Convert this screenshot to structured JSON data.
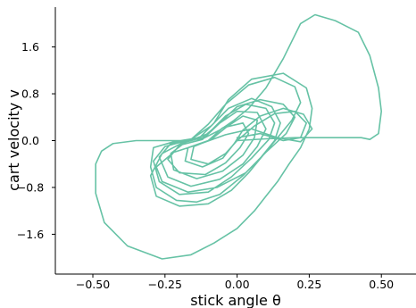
{
  "chart_data": {
    "type": "line",
    "title": "",
    "xlabel": "stick angle θ",
    "ylabel": "cart velocity v",
    "xlim": [
      -0.63,
      0.62
    ],
    "ylim": [
      -2.28,
      2.28
    ],
    "x_ticks": [
      -0.5,
      -0.25,
      0.0,
      0.25,
      0.5
    ],
    "x_tick_labels": [
      "−0.50",
      "−0.25",
      "0.00",
      "0.25",
      "0.50"
    ],
    "y_ticks": [
      -1.6,
      -0.8,
      0.0,
      0.8,
      1.6
    ],
    "y_tick_labels": [
      "−1.6",
      "−0.8",
      "0.0",
      "0.8",
      "1.6"
    ],
    "grid": false,
    "legend": "none",
    "color": "#66c2a5",
    "series": [
      {
        "points": [
          [
            0.0,
            0.0
          ],
          [
            0.1,
            0.03
          ],
          [
            0.2,
            0.05
          ],
          [
            0.33,
            0.05
          ],
          [
            0.43,
            0.05
          ],
          [
            0.46,
            0.02
          ],
          [
            0.49,
            0.12
          ],
          [
            0.5,
            0.5
          ],
          [
            0.49,
            0.9
          ],
          [
            0.46,
            1.45
          ],
          [
            0.42,
            1.85
          ],
          [
            0.34,
            2.05
          ],
          [
            0.27,
            2.15
          ],
          [
            0.22,
            2.0
          ],
          [
            0.16,
            1.4
          ],
          [
            0.1,
            0.9
          ],
          [
            0.04,
            0.55
          ],
          [
            -0.01,
            0.35
          ],
          [
            -0.06,
            0.18
          ],
          [
            -0.12,
            0.03
          ],
          [
            -0.2,
            0.0
          ],
          [
            -0.35,
            0.0
          ],
          [
            -0.43,
            -0.05
          ],
          [
            -0.47,
            -0.18
          ],
          [
            -0.49,
            -0.4
          ],
          [
            -0.49,
            -0.9
          ],
          [
            -0.46,
            -1.4
          ],
          [
            -0.38,
            -1.8
          ],
          [
            -0.26,
            -2.02
          ],
          [
            -0.16,
            -1.95
          ],
          [
            -0.08,
            -1.75
          ],
          [
            0.0,
            -1.5
          ],
          [
            0.06,
            -1.2
          ],
          [
            0.1,
            -0.95
          ],
          [
            0.14,
            -0.7
          ],
          [
            0.18,
            -0.4
          ],
          [
            0.22,
            -0.12
          ],
          [
            0.25,
            0.2
          ],
          [
            0.26,
            0.55
          ],
          [
            0.24,
            0.9
          ],
          [
            0.16,
            1.15
          ],
          [
            0.05,
            1.05
          ],
          [
            -0.03,
            0.7
          ],
          [
            -0.08,
            0.3
          ],
          [
            -0.13,
            0.05
          ],
          [
            -0.22,
            -0.02
          ],
          [
            -0.29,
            -0.12
          ],
          [
            -0.3,
            -0.45
          ],
          [
            -0.28,
            -0.8
          ],
          [
            -0.21,
            -1.02
          ],
          [
            -0.14,
            -1.05
          ],
          [
            -0.06,
            -0.92
          ],
          [
            0.02,
            -0.6
          ],
          [
            0.08,
            -0.3
          ],
          [
            0.13,
            0.0
          ],
          [
            0.15,
            0.3
          ],
          [
            0.12,
            0.58
          ],
          [
            0.05,
            0.72
          ],
          [
            -0.03,
            0.55
          ],
          [
            -0.09,
            0.25
          ],
          [
            -0.16,
            0.02
          ],
          [
            -0.23,
            -0.05
          ],
          [
            -0.27,
            -0.28
          ],
          [
            -0.24,
            -0.62
          ],
          [
            -0.16,
            -0.78
          ],
          [
            -0.06,
            -0.66
          ],
          [
            0.02,
            -0.4
          ],
          [
            0.07,
            -0.1
          ],
          [
            0.1,
            0.2
          ],
          [
            0.07,
            0.48
          ],
          [
            0.0,
            0.5
          ],
          [
            -0.06,
            0.3
          ],
          [
            -0.12,
            0.02
          ],
          [
            -0.2,
            -0.08
          ],
          [
            -0.24,
            -0.32
          ],
          [
            -0.2,
            -0.55
          ],
          [
            -0.11,
            -0.58
          ],
          [
            -0.04,
            -0.38
          ],
          [
            0.01,
            -0.12
          ],
          [
            0.04,
            0.12
          ],
          [
            0.02,
            0.3
          ],
          [
            -0.05,
            0.22
          ],
          [
            -0.1,
            0.0
          ],
          [
            -0.17,
            -0.12
          ],
          [
            -0.18,
            -0.35
          ],
          [
            -0.12,
            -0.45
          ],
          [
            -0.05,
            -0.3
          ],
          [
            -0.01,
            -0.05
          ],
          [
            0.02,
            0.18
          ],
          [
            0.08,
            0.42
          ],
          [
            0.16,
            0.55
          ],
          [
            0.23,
            0.45
          ],
          [
            0.26,
            0.2
          ],
          [
            0.22,
            -0.02
          ],
          [
            0.14,
            0.05
          ],
          [
            0.05,
            0.2
          ],
          [
            -0.04,
            0.1
          ],
          [
            -0.13,
            -0.06
          ],
          [
            -0.22,
            -0.2
          ],
          [
            -0.28,
            -0.45
          ],
          [
            -0.26,
            -0.7
          ],
          [
            -0.17,
            -0.88
          ],
          [
            -0.07,
            -0.8
          ],
          [
            0.03,
            -0.55
          ],
          [
            0.1,
            -0.2
          ],
          [
            0.17,
            0.12
          ],
          [
            0.2,
            0.4
          ],
          [
            0.16,
            0.62
          ],
          [
            0.08,
            0.7
          ],
          [
            0.0,
            0.58
          ],
          [
            -0.06,
            0.3
          ],
          [
            -0.12,
            0.05
          ],
          [
            -0.19,
            -0.04
          ],
          [
            -0.26,
            -0.22
          ],
          [
            -0.3,
            -0.6
          ],
          [
            -0.28,
            -0.95
          ],
          [
            -0.2,
            -1.12
          ],
          [
            -0.1,
            -1.08
          ],
          [
            -0.02,
            -0.85
          ],
          [
            0.04,
            -0.55
          ],
          [
            0.09,
            -0.25
          ],
          [
            0.14,
            0.05
          ],
          [
            0.19,
            0.35
          ],
          [
            0.22,
            0.65
          ],
          [
            0.2,
            0.92
          ],
          [
            0.13,
            1.08
          ],
          [
            0.04,
            0.95
          ],
          [
            -0.04,
            0.62
          ],
          [
            -0.1,
            0.28
          ],
          [
            -0.16,
            0.02
          ],
          [
            -0.25,
            -0.1
          ],
          [
            -0.29,
            -0.35
          ],
          [
            -0.27,
            -0.7
          ],
          [
            -0.2,
            -0.92
          ],
          [
            -0.1,
            -0.88
          ],
          [
            -0.02,
            -0.62
          ],
          [
            0.05,
            -0.3
          ],
          [
            0.11,
            0.02
          ],
          [
            0.13,
            0.3
          ],
          [
            0.1,
            0.55
          ],
          [
            0.03,
            0.62
          ],
          [
            -0.04,
            0.42
          ],
          [
            -0.1,
            0.12
          ],
          [
            -0.18,
            -0.03
          ],
          [
            -0.23,
            -0.22
          ],
          [
            -0.22,
            -0.5
          ],
          [
            -0.14,
            -0.65
          ],
          [
            -0.05,
            -0.52
          ],
          [
            0.02,
            -0.25
          ],
          [
            0.06,
            0.05
          ],
          [
            0.07,
            0.35
          ],
          [
            0.02,
            0.42
          ],
          [
            -0.04,
            0.22
          ],
          [
            -0.09,
            0.02
          ],
          [
            -0.15,
            -0.1
          ],
          [
            -0.16,
            -0.32
          ],
          [
            -0.1,
            -0.4
          ],
          [
            -0.04,
            -0.22
          ],
          [
            0.0,
            0.0
          ],
          [
            0.06,
            0.25
          ],
          [
            0.13,
            0.46
          ],
          [
            0.2,
            0.5
          ],
          [
            0.24,
            0.3
          ],
          [
            0.22,
            0.05
          ],
          [
            0.16,
            0.0
          ],
          [
            0.08,
            0.12
          ],
          [
            0.0,
            0.05
          ]
        ]
      }
    ]
  }
}
